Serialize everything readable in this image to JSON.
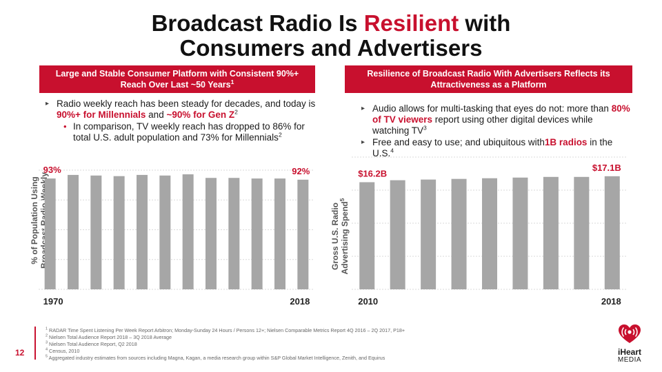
{
  "title": {
    "line1_pre": "Broadcast Radio Is ",
    "line1_accent": "Resilient",
    "line1_post": " with",
    "line2": "Consumers and Advertisers"
  },
  "left_panel": {
    "header_line1": "Large and Stable Consumer Platform with Consistent 90%+",
    "header_line2": "Reach Over Last ~50 Years",
    "header_sup": "1",
    "bullet1_pre": "Radio weekly reach has been steady for decades, and today is ",
    "bullet1_red1": "90%+ for Millennials",
    "bullet1_mid": " and ",
    "bullet1_red2": "~90% for Gen Z",
    "bullet1_sup": "2",
    "bullet2_text": "In comparison, TV weekly reach has dropped to 86% for total U.S. adult population and 73% for Millennials",
    "bullet2_sup": "2"
  },
  "right_panel": {
    "header_line1": "Resilience of Broadcast Radio With Advertisers Reflects its",
    "header_line2": "Attractiveness as a Platform",
    "bullet1_pre": "Audio allows for multi-tasking that eyes do not:  more than ",
    "bullet1_red": "80% of TV viewers",
    "bullet1_post": " report using other digital devices while watching TV",
    "bullet1_sup": "3",
    "bullet2_pre": "Free and easy to use; and ubiquitous with",
    "bullet2_red": "1B radios",
    "bullet2_post": " in the U.S.",
    "bullet2_sup": "4"
  },
  "chart_data": [
    {
      "type": "bar",
      "ylabel_line1": "% of Population Using",
      "ylabel_line2": "Broadcast Radio Weekly",
      "x_start_label": "1970",
      "x_end_label": "2018",
      "values": [
        93,
        96,
        95.5,
        95,
        96,
        95.5,
        96.5,
        93.5,
        93.5,
        93,
        93,
        92
      ],
      "ylim": [
        0,
        100
      ],
      "grid": true,
      "first_label": "93%",
      "last_label": "92%",
      "bar_color": "#a6a6a6",
      "label_color": "#c8102e"
    },
    {
      "type": "bar",
      "ylabel_line1": "Gross U.S. Radio",
      "ylabel_line2": "Advertising Spend",
      "ylabel_sup": "5",
      "x_start_label": "2010",
      "x_end_label": "2018",
      "values": [
        16.2,
        16.5,
        16.6,
        16.7,
        16.8,
        16.9,
        17.0,
        17.0,
        17.1
      ],
      "ylim": [
        0,
        20
      ],
      "grid": true,
      "first_label": "$16.2B",
      "last_label": "$17.1B",
      "bar_color": "#a6a6a6",
      "label_color": "#c8102e"
    }
  ],
  "footnotes": [
    {
      "num": "1",
      "text": "RADAR Time Spent Listening Per Week Report Arbitron; Monday-Sunday 24 Hours / Persons 12+; Nielsen Comparable Metrics Report 4Q 2016 – 2Q 2017, P18+"
    },
    {
      "num": "2",
      "text": "Nielsen Total Audience Report 2018 – 3Q 2018 Average"
    },
    {
      "num": "3",
      "text": "Nielsen Total Audience Report, Q2 2018"
    },
    {
      "num": "4",
      "text": "Census, 2010"
    },
    {
      "num": "5",
      "text": "Aggregated industry estimates from sources including Magna, Kagan, a media research group within S&P Global Market Intelligence, Zenith, and Equirus"
    }
  ],
  "page_number": "12",
  "logo": {
    "brand": "iHeart",
    "sub": "MEDIA"
  },
  "colors": {
    "accent": "#c8102e",
    "bar": "#a6a6a6",
    "grid": "#d9d9d9"
  }
}
